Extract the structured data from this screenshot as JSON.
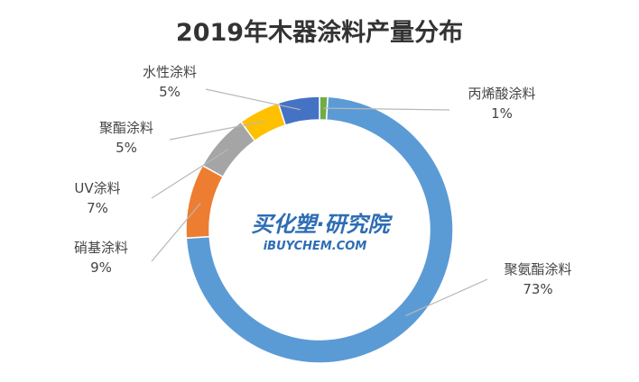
{
  "chart_data": {
    "type": "pie",
    "title": "2019年木器涂料产量分布",
    "slices": [
      {
        "label": "聚氨酯涂料",
        "value": 73,
        "pct_text": "73%",
        "color": "#5b9bd5"
      },
      {
        "label": "硝基涂料",
        "value": 9,
        "pct_text": "9%",
        "color": "#ed7d31"
      },
      {
        "label": "UV涂料",
        "value": 7,
        "pct_text": "7%",
        "color": "#a5a5a5"
      },
      {
        "label": "聚酯涂料",
        "value": 5,
        "pct_text": "5%",
        "color": "#ffc000"
      },
      {
        "label": "水性涂料",
        "value": 5,
        "pct_text": "5%",
        "color": "#4472c4"
      },
      {
        "label": "丙烯酸涂料",
        "value": 1,
        "pct_text": "1%",
        "color": "#70ad47"
      }
    ]
  },
  "watermark": {
    "line1": "买化塑·研究院",
    "line2": "iBUYCHEM.COM"
  }
}
